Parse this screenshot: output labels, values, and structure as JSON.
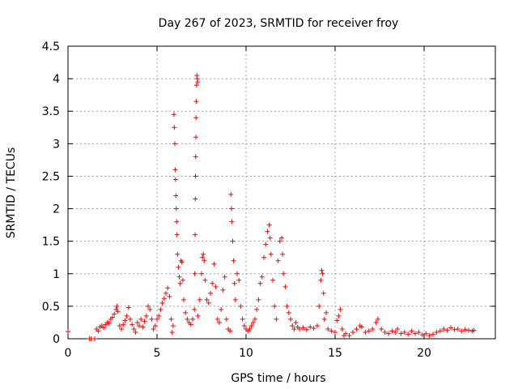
{
  "chart_data": {
    "type": "scatter",
    "title": "Day 267 of 2023, SRMTID for receiver froy",
    "xlabel": "GPS time / hours",
    "ylabel": "SRMTID / TECUs",
    "xlim": [
      0,
      24
    ],
    "ylim": [
      0,
      4.5
    ],
    "xticks": [
      0,
      5,
      10,
      15,
      20
    ],
    "xtick_labels": [
      "0",
      "5",
      "10",
      "15",
      "20"
    ],
    "yticks": [
      0,
      0.5,
      1,
      1.5,
      2,
      2.5,
      3,
      3.5,
      4,
      4.5
    ],
    "ytick_labels": [
      "0",
      "0.5",
      "1",
      "1.5",
      "2",
      "2.5",
      "3",
      "3.5",
      "4",
      "4.5"
    ],
    "grid": true,
    "marker": "+",
    "color": "#ff0000",
    "series": [
      {
        "name": "SRMTID",
        "points": [
          [
            0.0,
            0.11
          ],
          [
            1.2,
            0.0
          ],
          [
            1.3,
            0.0
          ],
          [
            1.5,
            0.0
          ],
          [
            1.6,
            0.15
          ],
          [
            1.7,
            0.12
          ],
          [
            1.8,
            0.18
          ],
          [
            1.9,
            0.2
          ],
          [
            2.0,
            0.17
          ],
          [
            2.1,
            0.22
          ],
          [
            2.2,
            0.25
          ],
          [
            2.3,
            0.24
          ],
          [
            2.4,
            0.3
          ],
          [
            2.5,
            0.33
          ],
          [
            2.6,
            0.38
          ],
          [
            2.7,
            0.45
          ],
          [
            2.75,
            0.5
          ],
          [
            2.8,
            0.42
          ],
          [
            2.9,
            0.2
          ],
          [
            3.0,
            0.15
          ],
          [
            3.1,
            0.22
          ],
          [
            3.2,
            0.28
          ],
          [
            3.3,
            0.35
          ],
          [
            3.4,
            0.48
          ],
          [
            3.5,
            0.3
          ],
          [
            3.6,
            0.22
          ],
          [
            3.7,
            0.15
          ],
          [
            3.8,
            0.1
          ],
          [
            3.9,
            0.25
          ],
          [
            4.0,
            0.2
          ],
          [
            4.1,
            0.3
          ],
          [
            4.2,
            0.18
          ],
          [
            4.3,
            0.27
          ],
          [
            4.4,
            0.35
          ],
          [
            4.5,
            0.5
          ],
          [
            4.6,
            0.45
          ],
          [
            4.7,
            0.3
          ],
          [
            4.8,
            0.15
          ],
          [
            4.9,
            0.2
          ],
          [
            5.0,
            0.3
          ],
          [
            5.1,
            0.35
          ],
          [
            5.2,
            0.45
          ],
          [
            5.3,
            0.55
          ],
          [
            5.4,
            0.62
          ],
          [
            5.5,
            0.7
          ],
          [
            5.6,
            0.78
          ],
          [
            5.7,
            0.65
          ],
          [
            5.8,
            0.3
          ],
          [
            5.85,
            0.1
          ],
          [
            5.9,
            0.2
          ],
          [
            5.95,
            3.45
          ],
          [
            5.97,
            3.25
          ],
          [
            6.0,
            3.0
          ],
          [
            6.02,
            2.6
          ],
          [
            6.04,
            2.45
          ],
          [
            6.06,
            2.2
          ],
          [
            6.08,
            2.0
          ],
          [
            6.1,
            1.8
          ],
          [
            6.12,
            1.6
          ],
          [
            6.15,
            1.3
          ],
          [
            6.2,
            1.1
          ],
          [
            6.25,
            0.95
          ],
          [
            6.3,
            0.85
          ],
          [
            6.35,
            1.2
          ],
          [
            6.4,
            1.18
          ],
          [
            6.45,
            0.9
          ],
          [
            6.5,
            0.6
          ],
          [
            6.6,
            0.4
          ],
          [
            6.7,
            0.3
          ],
          [
            6.8,
            0.25
          ],
          [
            6.9,
            0.22
          ],
          [
            7.0,
            0.3
          ],
          [
            7.1,
            0.45
          ],
          [
            7.12,
            1.0
          ],
          [
            7.14,
            1.6
          ],
          [
            7.15,
            2.15
          ],
          [
            7.16,
            2.5
          ],
          [
            7.17,
            2.8
          ],
          [
            7.18,
            3.1
          ],
          [
            7.19,
            3.4
          ],
          [
            7.2,
            3.65
          ],
          [
            7.22,
            3.9
          ],
          [
            7.24,
            4.05
          ],
          [
            7.26,
            4.0
          ],
          [
            7.28,
            3.95
          ],
          [
            7.3,
            0.35
          ],
          [
            7.4,
            0.6
          ],
          [
            7.5,
            1.0
          ],
          [
            7.55,
            1.25
          ],
          [
            7.6,
            1.3
          ],
          [
            7.65,
            1.2
          ],
          [
            7.7,
            0.9
          ],
          [
            7.8,
            0.6
          ],
          [
            7.9,
            0.55
          ],
          [
            8.0,
            0.7
          ],
          [
            8.1,
            0.85
          ],
          [
            8.2,
            1.15
          ],
          [
            8.3,
            0.8
          ],
          [
            8.4,
            0.3
          ],
          [
            8.5,
            0.25
          ],
          [
            8.6,
            0.45
          ],
          [
            8.7,
            0.75
          ],
          [
            8.8,
            0.95
          ],
          [
            8.9,
            0.3
          ],
          [
            9.0,
            0.15
          ],
          [
            9.1,
            0.12
          ],
          [
            9.15,
            2.22
          ],
          [
            9.18,
            2.0
          ],
          [
            9.2,
            1.8
          ],
          [
            9.25,
            1.5
          ],
          [
            9.3,
            1.2
          ],
          [
            9.35,
            0.85
          ],
          [
            9.4,
            0.6
          ],
          [
            9.5,
            1.0
          ],
          [
            9.6,
            0.9
          ],
          [
            9.7,
            0.5
          ],
          [
            9.8,
            0.3
          ],
          [
            9.9,
            0.2
          ],
          [
            10.0,
            0.15
          ],
          [
            10.1,
            0.12
          ],
          [
            10.2,
            0.15
          ],
          [
            10.3,
            0.2
          ],
          [
            10.4,
            0.25
          ],
          [
            10.5,
            0.3
          ],
          [
            10.6,
            0.45
          ],
          [
            10.7,
            0.6
          ],
          [
            10.8,
            0.85
          ],
          [
            10.9,
            0.95
          ],
          [
            11.0,
            1.25
          ],
          [
            11.1,
            1.45
          ],
          [
            11.2,
            1.65
          ],
          [
            11.3,
            1.75
          ],
          [
            11.35,
            1.55
          ],
          [
            11.4,
            1.3
          ],
          [
            11.5,
            0.9
          ],
          [
            11.6,
            0.5
          ],
          [
            11.7,
            0.3
          ],
          [
            11.8,
            1.2
          ],
          [
            11.9,
            1.5
          ],
          [
            12.0,
            1.55
          ],
          [
            12.05,
            1.3
          ],
          [
            12.1,
            1.0
          ],
          [
            12.2,
            0.8
          ],
          [
            12.3,
            0.5
          ],
          [
            12.4,
            0.4
          ],
          [
            12.5,
            0.3
          ],
          [
            12.6,
            0.2
          ],
          [
            12.7,
            0.15
          ],
          [
            12.8,
            0.25
          ],
          [
            12.9,
            0.18
          ],
          [
            13.0,
            0.15
          ],
          [
            13.2,
            0.17
          ],
          [
            13.4,
            0.14
          ],
          [
            13.6,
            0.18
          ],
          [
            13.8,
            0.16
          ],
          [
            14.0,
            0.2
          ],
          [
            14.1,
            0.5
          ],
          [
            14.2,
            0.9
          ],
          [
            14.25,
            1.05
          ],
          [
            14.3,
            1.0
          ],
          [
            14.35,
            0.7
          ],
          [
            14.4,
            0.3
          ],
          [
            14.5,
            0.4
          ],
          [
            14.6,
            0.15
          ],
          [
            14.8,
            0.12
          ],
          [
            15.0,
            0.1
          ],
          [
            15.1,
            0.28
          ],
          [
            15.2,
            0.35
          ],
          [
            15.3,
            0.45
          ],
          [
            15.4,
            0.15
          ],
          [
            15.5,
            0.05
          ],
          [
            15.6,
            0.08
          ],
          [
            15.8,
            0.05
          ],
          [
            16.0,
            0.1
          ],
          [
            16.2,
            0.15
          ],
          [
            16.4,
            0.2
          ],
          [
            16.5,
            0.18
          ],
          [
            16.7,
            0.1
          ],
          [
            16.9,
            0.12
          ],
          [
            17.1,
            0.15
          ],
          [
            17.3,
            0.25
          ],
          [
            17.4,
            0.3
          ],
          [
            17.6,
            0.15
          ],
          [
            17.8,
            0.1
          ],
          [
            18.0,
            0.08
          ],
          [
            18.2,
            0.12
          ],
          [
            18.4,
            0.1
          ],
          [
            18.5,
            0.15
          ],
          [
            18.7,
            0.08
          ],
          [
            18.9,
            0.1
          ],
          [
            19.1,
            0.07
          ],
          [
            19.3,
            0.12
          ],
          [
            19.5,
            0.08
          ],
          [
            19.7,
            0.1
          ],
          [
            19.9,
            0.06
          ],
          [
            20.1,
            0.08
          ],
          [
            20.3,
            0.05
          ],
          [
            20.5,
            0.07
          ],
          [
            20.7,
            0.1
          ],
          [
            20.9,
            0.12
          ],
          [
            21.1,
            0.15
          ],
          [
            21.3,
            0.13
          ],
          [
            21.5,
            0.17
          ],
          [
            21.7,
            0.14
          ],
          [
            21.9,
            0.15
          ],
          [
            22.1,
            0.12
          ],
          [
            22.3,
            0.14
          ],
          [
            22.5,
            0.13
          ],
          [
            22.7,
            0.12
          ],
          [
            22.8,
            0.13
          ]
        ]
      }
    ]
  }
}
